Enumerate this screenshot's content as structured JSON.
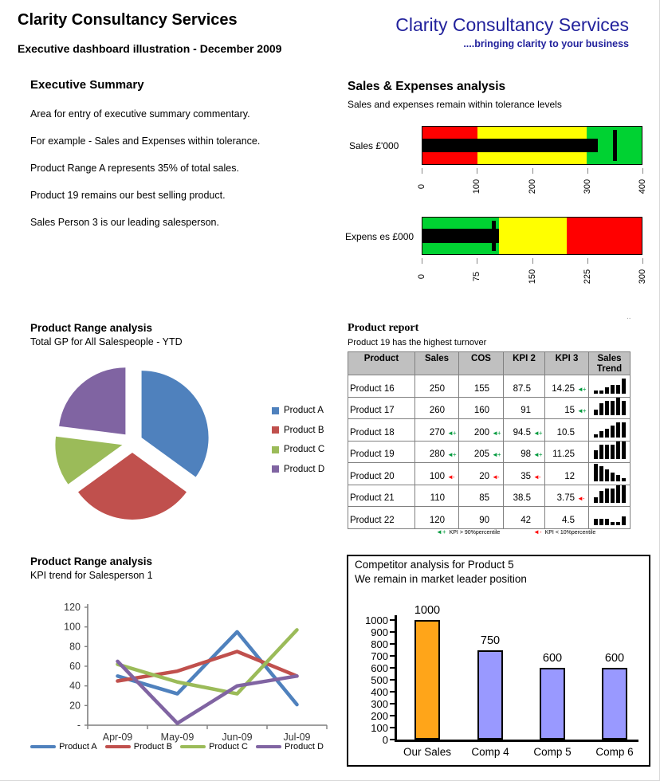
{
  "header": {
    "title": "Clarity Consultancy Services",
    "subtitle": "Executive dashboard illustration - December 2009"
  },
  "logo": {
    "name": "Clarity Consultancy Services",
    "tagline": "....bringing clarity to your business",
    "color": "#22229C"
  },
  "executive_summary": {
    "heading": "Executive Summary",
    "lines": [
      "Area for entry of executive summary commentary.",
      "For example - Sales and Expenses within tolerance.",
      "Product Range A represents 35% of total sales.",
      "Product 19 remains our best selling product.",
      "Sales Person 3 is our leading salesperson."
    ]
  },
  "sales_expenses": {
    "title": "Sales & Expenses analysis",
    "subtitle": "Sales and expenses remain within tolerance levels"
  },
  "pie_section": {
    "title": "Product Range analysis",
    "subtitle": "Total GP for All Salespeople - YTD"
  },
  "product_report": {
    "title": "Product report",
    "subtitle": "Product 19 has the highest turnover",
    "columns": [
      "Product",
      "Sales",
      "COS",
      "KPI 2",
      "KPI 3",
      "Sales Trend"
    ],
    "rows": [
      {
        "product": "Product 16",
        "sales": "250",
        "sales_flag": null,
        "cos": "155",
        "cos_flag": null,
        "kpi2": "87.5",
        "kpi2_flag": null,
        "kpi3": "14.25",
        "kpi3_flag": "good",
        "trend": [
          1,
          1,
          2,
          3,
          3,
          5
        ]
      },
      {
        "product": "Product 17",
        "sales": "260",
        "sales_flag": null,
        "cos": "160",
        "cos_flag": null,
        "kpi2": "91",
        "kpi2_flag": null,
        "kpi3": "15",
        "kpi3_flag": "good",
        "trend": [
          2,
          4,
          5,
          5,
          6,
          5
        ]
      },
      {
        "product": "Product 18",
        "sales": "270",
        "sales_flag": "good",
        "cos": "200",
        "cos_flag": "good",
        "kpi2": "94.5",
        "kpi2_flag": "good",
        "kpi3": "10.5",
        "kpi3_flag": null,
        "trend": [
          1,
          2,
          3,
          4,
          5,
          5
        ]
      },
      {
        "product": "Product 19",
        "sales": "280",
        "sales_flag": "good",
        "cos": "205",
        "cos_flag": "good",
        "kpi2": "98",
        "kpi2_flag": "good",
        "kpi3": "11.25",
        "kpi3_flag": null,
        "trend": [
          3,
          5,
          5,
          5,
          6,
          6
        ]
      },
      {
        "product": "Product 20",
        "sales": "100",
        "sales_flag": "bad",
        "cos": "20",
        "cos_flag": "bad",
        "kpi2": "35",
        "kpi2_flag": "bad",
        "kpi3": "12",
        "kpi3_flag": null,
        "trend": [
          6,
          5,
          4,
          3,
          2,
          1
        ]
      },
      {
        "product": "Product 21",
        "sales": "110",
        "sales_flag": null,
        "cos": "85",
        "cos_flag": null,
        "kpi2": "38.5",
        "kpi2_flag": null,
        "kpi3": "3.75",
        "kpi3_flag": "bad",
        "trend": [
          2,
          4,
          5,
          5,
          6,
          6
        ]
      },
      {
        "product": "Product 22",
        "sales": "120",
        "sales_flag": null,
        "cos": "90",
        "cos_flag": null,
        "kpi2": "42",
        "kpi2_flag": null,
        "kpi3": "4.5",
        "kpi3_flag": null,
        "trend": [
          2,
          2,
          2,
          1,
          1,
          3
        ]
      }
    ],
    "legend_good": "KPI > 90%percentile",
    "legend_bad": "KPI < 10%percentile",
    "flag_good_glyph": "◄+",
    "flag_bad_glyph": "◄-",
    "corner_dots": ".."
  },
  "line_section": {
    "title": "Product Range analysis",
    "subtitle": "KPI trend for Salesperson 1"
  },
  "competitor": {
    "title": "Competitor analysis for Product 5",
    "subtitle": "We remain in market leader position"
  },
  "chart_data": [
    {
      "id": "bullet_sales",
      "type": "bullet",
      "label": "Sales £'000",
      "max": 400,
      "ticks": [
        0,
        100,
        200,
        300,
        400
      ],
      "bands": [
        {
          "from": 0,
          "to": 100,
          "color": "#FF0000"
        },
        {
          "from": 100,
          "to": 300,
          "color": "#FFFF00"
        },
        {
          "from": 300,
          "to": 400,
          "color": "#00D232"
        }
      ],
      "value": 320,
      "target": 350
    },
    {
      "id": "bullet_expenses",
      "type": "bullet",
      "label": "Expens es £000",
      "max": 300,
      "ticks": [
        0,
        75,
        150,
        225,
        300
      ],
      "bands": [
        {
          "from": 0,
          "to": 105,
          "color": "#00D232"
        },
        {
          "from": 105,
          "to": 197,
          "color": "#FFFF00"
        },
        {
          "from": 197,
          "to": 300,
          "color": "#FF0000"
        }
      ],
      "value": 105,
      "target": 97
    },
    {
      "id": "product_range_pie",
      "type": "pie",
      "title": "Total GP for All Salespeople - YTD",
      "slices": [
        {
          "label": "Product A",
          "value": 35,
          "color": "#4F81BD"
        },
        {
          "label": "Product B",
          "value": 30,
          "color": "#C0504D"
        },
        {
          "label": "Product C",
          "value": 12,
          "color": "#9BBB59"
        },
        {
          "label": "Product D",
          "value": 23,
          "color": "#8064A2"
        }
      ]
    },
    {
      "id": "kpi_trend_line",
      "type": "line",
      "x": [
        "Apr-09",
        "May-09",
        "Jun-09",
        "Jul-09"
      ],
      "ylim": [
        0,
        120
      ],
      "yticks": [
        0,
        20,
        40,
        60,
        80,
        100,
        120
      ],
      "zero_label": "-",
      "series": [
        {
          "name": "Product A",
          "color": "#4F81BD",
          "values": [
            50,
            32,
            95,
            21
          ]
        },
        {
          "name": "Product B",
          "color": "#C0504D",
          "values": [
            45,
            55,
            75,
            50
          ]
        },
        {
          "name": "Product C",
          "color": "#9BBB59",
          "values": [
            62,
            44,
            32,
            97
          ]
        },
        {
          "name": "Product D",
          "color": "#8064A2",
          "values": [
            65,
            2,
            40,
            50
          ]
        }
      ]
    },
    {
      "id": "competitor_bar",
      "type": "bar",
      "categories": [
        "Our Sales",
        "Comp 4",
        "Comp 5",
        "Comp 6"
      ],
      "values": [
        1000,
        750,
        600,
        600
      ],
      "colors": [
        "#FFA519",
        "#9999FF",
        "#9999FF",
        "#9999FF"
      ],
      "ylim": [
        0,
        1000
      ],
      "ytick_step": 100
    }
  ]
}
